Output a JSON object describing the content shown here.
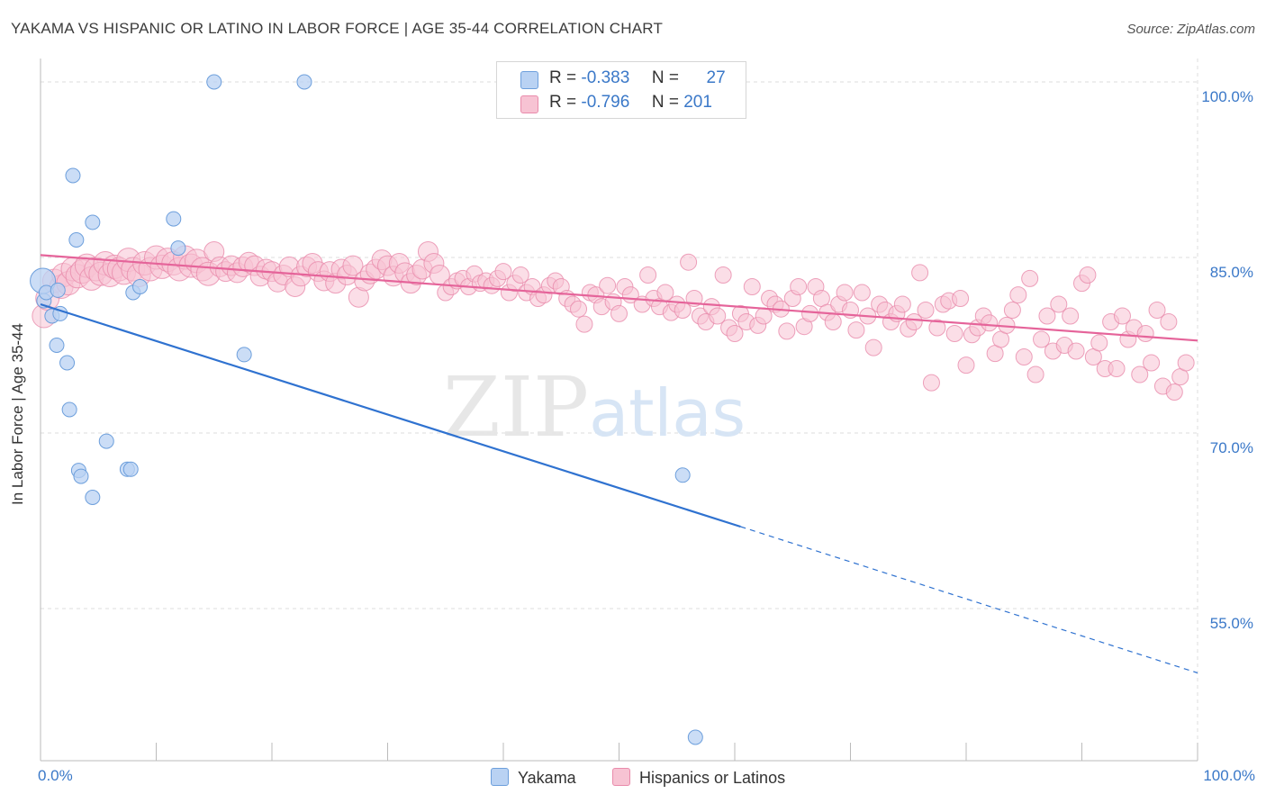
{
  "title": "YAKAMA VS HISPANIC OR LATINO IN LABOR FORCE | AGE 35-44 CORRELATION CHART",
  "source": "Source: ZipAtlas.com",
  "watermark": {
    "zip": "ZIP",
    "atlas": "atlas"
  },
  "legend": {
    "r_label": "R =",
    "n_label": "N =",
    "series": [
      {
        "name": "Yakama",
        "r": "-0.383",
        "n": "27",
        "fill": "#b9d2f3",
        "stroke": "#6d9fdc"
      },
      {
        "name": "Hispanics or Latinos",
        "r": "-0.796",
        "n": "201",
        "fill": "#f7c3d3",
        "stroke": "#e98bab"
      }
    ]
  },
  "colors": {
    "blue_line": "#2f72d0",
    "pink_line": "#e5649a",
    "axis_text": "#3a78c8",
    "grid": "#dcdcdc"
  },
  "chart_data": {
    "type": "scatter",
    "title": "YAKAMA VS HISPANIC OR LATINO IN LABOR FORCE | AGE 35-44 CORRELATION CHART",
    "xlabel": "",
    "ylabel": "In Labor Force | Age 35-44",
    "xlim": [
      0,
      100
    ],
    "ylim": [
      42,
      102
    ],
    "x_tick_labels": [
      "0.0%",
      "100.0%"
    ],
    "y_ticks": [
      55,
      70,
      85,
      100
    ],
    "y_tick_labels": [
      "55.0%",
      "70.0%",
      "85.0%",
      "100.0%"
    ],
    "grid": true,
    "legend_position": "top-center",
    "series": [
      {
        "name": "Yakama",
        "points": [
          [
            0.2,
            83.0
          ],
          [
            0.3,
            81.3
          ],
          [
            0.5,
            82.0
          ],
          [
            1.0,
            80.0
          ],
          [
            1.5,
            82.2
          ],
          [
            1.7,
            80.2
          ],
          [
            1.4,
            77.5
          ],
          [
            2.3,
            76.0
          ],
          [
            2.5,
            72.0
          ],
          [
            2.8,
            92.0
          ],
          [
            3.1,
            86.5
          ],
          [
            3.3,
            66.8
          ],
          [
            3.5,
            66.3
          ],
          [
            4.5,
            88.0
          ],
          [
            4.5,
            64.5
          ],
          [
            5.7,
            69.3
          ],
          [
            7.5,
            66.9
          ],
          [
            7.8,
            66.9
          ],
          [
            8.0,
            82.0
          ],
          [
            8.6,
            82.5
          ],
          [
            11.5,
            88.3
          ],
          [
            11.9,
            85.8
          ],
          [
            15.0,
            100.0
          ],
          [
            17.6,
            76.7
          ],
          [
            22.8,
            100.0
          ],
          [
            55.5,
            66.4
          ],
          [
            56.6,
            44.0
          ]
        ],
        "trend": {
          "x": [
            0,
            60.5
          ],
          "y": [
            81.0,
            62.0
          ],
          "dashed_to": [
            100,
            49.5
          ]
        }
      },
      {
        "name": "Hispanics or Latinos",
        "points": [
          [
            0.3,
            80.0
          ],
          [
            0.6,
            81.5
          ],
          [
            1.2,
            83.0
          ],
          [
            1.8,
            82.5
          ],
          [
            2.0,
            83.5
          ],
          [
            2.4,
            82.8
          ],
          [
            2.8,
            84.0
          ],
          [
            3.2,
            83.4
          ],
          [
            3.6,
            83.8
          ],
          [
            4.0,
            84.3
          ],
          [
            4.4,
            83.2
          ],
          [
            4.8,
            84.0
          ],
          [
            5.2,
            83.6
          ],
          [
            5.6,
            84.5
          ],
          [
            6.0,
            83.5
          ],
          [
            6.4,
            84.2
          ],
          [
            6.8,
            84.0
          ],
          [
            7.2,
            83.7
          ],
          [
            7.6,
            84.8
          ],
          [
            8.0,
            84.0
          ],
          [
            8.5,
            83.5
          ],
          [
            9.0,
            84.5
          ],
          [
            9.5,
            84.0
          ],
          [
            10.0,
            85.0
          ],
          [
            10.5,
            84.2
          ],
          [
            11.0,
            84.8
          ],
          [
            11.5,
            84.5
          ],
          [
            12.0,
            84.0
          ],
          [
            12.5,
            85.0
          ],
          [
            13.0,
            84.3
          ],
          [
            13.5,
            84.7
          ],
          [
            14.0,
            84.0
          ],
          [
            14.5,
            83.6
          ],
          [
            15.0,
            85.5
          ],
          [
            15.5,
            84.2
          ],
          [
            16.0,
            83.8
          ],
          [
            16.5,
            84.3
          ],
          [
            17.0,
            83.7
          ],
          [
            17.5,
            84.2
          ],
          [
            18.0,
            84.6
          ],
          [
            18.5,
            84.3
          ],
          [
            19.0,
            83.4
          ],
          [
            19.5,
            84.0
          ],
          [
            20.0,
            83.8
          ],
          [
            20.5,
            82.9
          ],
          [
            21.0,
            83.5
          ],
          [
            21.5,
            84.2
          ],
          [
            22.0,
            82.5
          ],
          [
            22.5,
            83.4
          ],
          [
            23.0,
            84.2
          ],
          [
            23.5,
            84.5
          ],
          [
            24.0,
            83.8
          ],
          [
            24.5,
            83.0
          ],
          [
            25.0,
            83.8
          ],
          [
            25.5,
            82.8
          ],
          [
            26.0,
            84.0
          ],
          [
            26.5,
            83.5
          ],
          [
            27.0,
            84.3
          ],
          [
            27.5,
            81.6
          ],
          [
            28.0,
            83.0
          ],
          [
            28.5,
            83.6
          ],
          [
            29.0,
            84.0
          ],
          [
            29.5,
            84.8
          ],
          [
            30.0,
            84.3
          ],
          [
            30.5,
            83.4
          ],
          [
            31.0,
            84.5
          ],
          [
            31.5,
            83.7
          ],
          [
            32.0,
            82.8
          ],
          [
            32.5,
            83.5
          ],
          [
            33.0,
            84.0
          ],
          [
            33.5,
            85.5
          ],
          [
            34.0,
            84.5
          ],
          [
            34.5,
            83.5
          ],
          [
            35.0,
            82.0
          ],
          [
            35.5,
            82.5
          ],
          [
            36.0,
            83.0
          ],
          [
            36.5,
            83.2
          ],
          [
            37.0,
            82.5
          ],
          [
            37.5,
            83.6
          ],
          [
            38.0,
            82.8
          ],
          [
            38.5,
            83.0
          ],
          [
            39.0,
            82.6
          ],
          [
            39.5,
            83.2
          ],
          [
            40.0,
            83.8
          ],
          [
            40.5,
            82.0
          ],
          [
            41.0,
            82.8
          ],
          [
            41.5,
            83.5
          ],
          [
            42.0,
            82.0
          ],
          [
            42.5,
            82.5
          ],
          [
            43.0,
            81.5
          ],
          [
            43.5,
            81.8
          ],
          [
            44.0,
            82.6
          ],
          [
            44.5,
            83.0
          ],
          [
            45.0,
            82.5
          ],
          [
            45.5,
            81.5
          ],
          [
            46.0,
            81.0
          ],
          [
            46.5,
            80.6
          ],
          [
            47.0,
            79.3
          ],
          [
            47.5,
            82.0
          ],
          [
            48.0,
            81.8
          ],
          [
            48.5,
            80.8
          ],
          [
            49.0,
            82.6
          ],
          [
            49.5,
            81.2
          ],
          [
            50.0,
            80.2
          ],
          [
            50.5,
            82.5
          ],
          [
            51.0,
            81.8
          ],
          [
            52.0,
            81.0
          ],
          [
            52.5,
            83.5
          ],
          [
            53.0,
            81.5
          ],
          [
            53.5,
            80.8
          ],
          [
            54.0,
            82.0
          ],
          [
            54.5,
            80.3
          ],
          [
            55.0,
            81.0
          ],
          [
            55.5,
            80.5
          ],
          [
            56.0,
            84.6
          ],
          [
            56.5,
            81.5
          ],
          [
            57.0,
            80.0
          ],
          [
            57.5,
            79.5
          ],
          [
            58.0,
            80.8
          ],
          [
            58.5,
            80.0
          ],
          [
            59.0,
            83.5
          ],
          [
            59.5,
            79.0
          ],
          [
            60.0,
            78.5
          ],
          [
            60.5,
            80.2
          ],
          [
            61.0,
            79.5
          ],
          [
            61.5,
            82.5
          ],
          [
            62.0,
            79.2
          ],
          [
            62.5,
            80.0
          ],
          [
            63.0,
            81.5
          ],
          [
            63.5,
            81.0
          ],
          [
            64.0,
            80.6
          ],
          [
            64.5,
            78.7
          ],
          [
            65.0,
            81.5
          ],
          [
            65.5,
            82.5
          ],
          [
            66.0,
            79.1
          ],
          [
            66.5,
            80.2
          ],
          [
            67.0,
            82.5
          ],
          [
            67.5,
            81.5
          ],
          [
            68.0,
            80.3
          ],
          [
            68.5,
            79.5
          ],
          [
            69.0,
            81.0
          ],
          [
            69.5,
            82.0
          ],
          [
            70.0,
            80.5
          ],
          [
            70.5,
            78.8
          ],
          [
            71.0,
            82.0
          ],
          [
            71.5,
            80.0
          ],
          [
            72.0,
            77.3
          ],
          [
            72.5,
            81.0
          ],
          [
            73.0,
            80.5
          ],
          [
            73.5,
            79.5
          ],
          [
            74.0,
            80.2
          ],
          [
            74.5,
            81.0
          ],
          [
            75.0,
            78.9
          ],
          [
            75.5,
            79.5
          ],
          [
            76.0,
            83.7
          ],
          [
            76.5,
            80.5
          ],
          [
            77.0,
            74.3
          ],
          [
            77.5,
            79.0
          ],
          [
            78.0,
            81.0
          ],
          [
            78.5,
            81.3
          ],
          [
            79.0,
            78.5
          ],
          [
            79.5,
            81.5
          ],
          [
            80.0,
            75.8
          ],
          [
            80.5,
            78.4
          ],
          [
            81.0,
            79.0
          ],
          [
            81.5,
            80.0
          ],
          [
            82.0,
            79.4
          ],
          [
            82.5,
            76.8
          ],
          [
            83.0,
            78.0
          ],
          [
            83.5,
            79.2
          ],
          [
            84.0,
            80.5
          ],
          [
            84.5,
            81.8
          ],
          [
            85.0,
            76.5
          ],
          [
            85.5,
            83.2
          ],
          [
            86.0,
            75.0
          ],
          [
            86.5,
            78.0
          ],
          [
            87.0,
            80.0
          ],
          [
            87.5,
            77.0
          ],
          [
            88.0,
            81.0
          ],
          [
            88.5,
            77.5
          ],
          [
            89.0,
            80.0
          ],
          [
            89.5,
            77.0
          ],
          [
            90.0,
            82.8
          ],
          [
            90.5,
            83.5
          ],
          [
            91.0,
            76.5
          ],
          [
            91.5,
            77.7
          ],
          [
            92.0,
            75.5
          ],
          [
            92.5,
            79.5
          ],
          [
            93.0,
            75.5
          ],
          [
            93.5,
            80.0
          ],
          [
            94.0,
            78.0
          ],
          [
            94.5,
            79.0
          ],
          [
            95.0,
            75.0
          ],
          [
            95.5,
            78.5
          ],
          [
            96.0,
            76.0
          ],
          [
            96.5,
            80.5
          ],
          [
            97.0,
            74.0
          ],
          [
            97.5,
            79.5
          ],
          [
            98.0,
            73.5
          ],
          [
            98.5,
            74.8
          ],
          [
            99.0,
            76.0
          ]
        ],
        "trend": {
          "x": [
            0,
            100
          ],
          "y": [
            85.2,
            77.9
          ]
        }
      }
    ]
  }
}
